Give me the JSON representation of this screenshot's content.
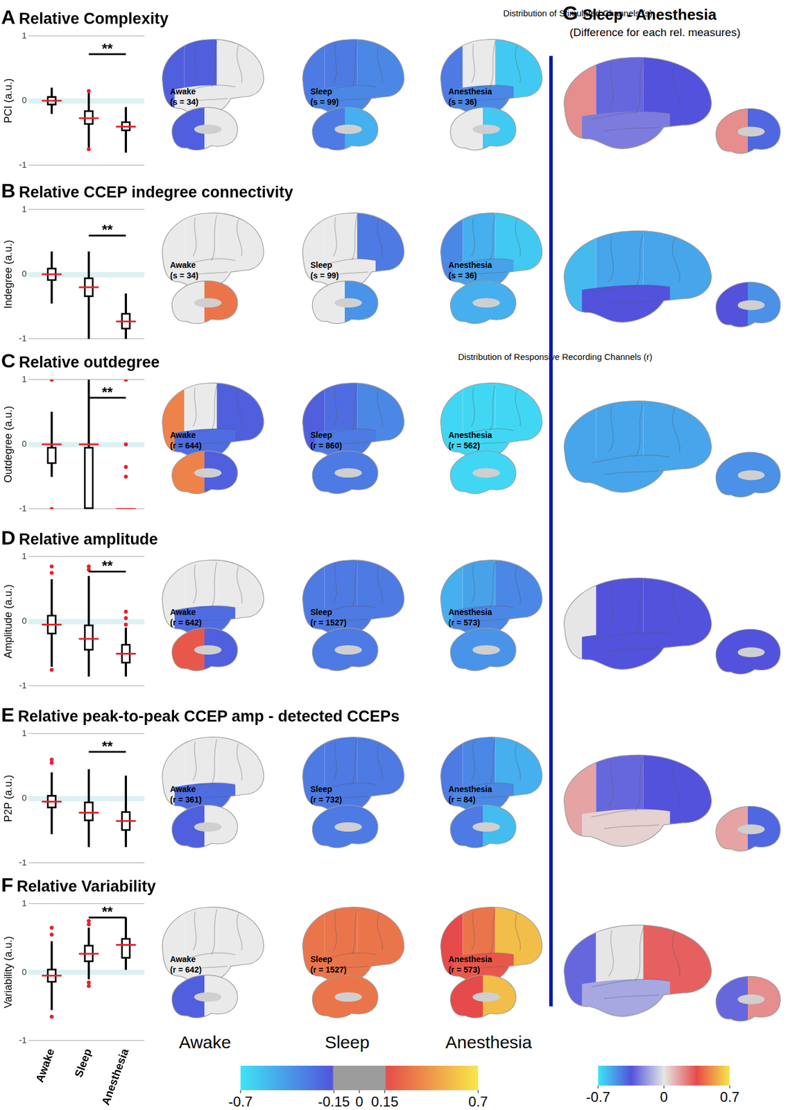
{
  "chart_data": [
    {
      "type": "box",
      "panel": "A",
      "title": "Relative Complexity",
      "ylabel": "PCI (a.u.)",
      "categories": [
        "Awake",
        "Sleep",
        "Anesthesia"
      ],
      "boxes": [
        {
          "median": 0,
          "q1": -0.07,
          "q3": 0.07,
          "whisker_low": -0.2,
          "whisker_high": 0.2,
          "outliers": []
        },
        {
          "median": -0.27,
          "q1": -0.37,
          "q3": -0.15,
          "whisker_low": -0.72,
          "whisker_high": 0.12,
          "outliers": [
            0.15,
            -0.75
          ]
        },
        {
          "median": -0.4,
          "q1": -0.47,
          "q3": -0.32,
          "whisker_low": -0.8,
          "whisker_high": -0.1,
          "outliers": []
        }
      ],
      "significance": {
        "from": "Sleep",
        "to": "Anesthesia",
        "y": 0.72,
        "label": "**"
      },
      "color": "#000000",
      "ylim": [
        -1,
        1
      ],
      "yticks": [
        -1,
        0,
        1
      ],
      "grid": true,
      "tick_labels": "y"
    },
    {
      "type": "box",
      "panel": "B",
      "title": "Relative CCEP indegree connectivity",
      "ylabel": "Indegree (a.u.)",
      "categories": [
        "Awake",
        "Sleep",
        "Anesthesia"
      ],
      "boxes": [
        {
          "median": 0,
          "q1": -0.1,
          "q3": 0.1,
          "whisker_low": -0.45,
          "whisker_high": 0.35,
          "outliers": []
        },
        {
          "median": -0.2,
          "q1": -0.35,
          "q3": -0.05,
          "whisker_low": -1,
          "whisker_high": 0.35,
          "outliers": []
        },
        {
          "median": -0.73,
          "q1": -0.85,
          "q3": -0.6,
          "whisker_low": -1,
          "whisker_high": -0.3,
          "outliers": []
        }
      ],
      "significance": {
        "from": "Sleep",
        "to": "Anesthesia",
        "y": 0.6,
        "label": "**"
      },
      "color": "#000000",
      "ylim": [
        -1,
        1
      ],
      "yticks": [
        -1,
        0,
        1
      ],
      "grid": true,
      "tick_labels": "y"
    },
    {
      "type": "box",
      "panel": "C",
      "title": "Relative outdegree",
      "ylabel": "Outdegree (a.u.)",
      "categories": [
        "Awake",
        "Sleep",
        "Anesthesia"
      ],
      "boxes": [
        {
          "median": 0,
          "q1": -0.3,
          "q3": 0,
          "whisker_low": -0.5,
          "whisker_high": 0.5,
          "outliers": [
            1,
            -1
          ]
        },
        {
          "median": 0,
          "q1": -1,
          "q3": 0,
          "whisker_low": -1,
          "whisker_high": 1,
          "outliers": []
        },
        {
          "median": -1,
          "q1": -1,
          "q3": -1,
          "whisker_low": -1,
          "whisker_high": -1,
          "outliers": [
            1,
            0,
            -0.35,
            -0.5
          ]
        }
      ],
      "significance": {
        "from": "Sleep",
        "to": "Anesthesia",
        "y": 0.72,
        "label": "**"
      },
      "color": "#000000",
      "ylim": [
        -1,
        1
      ],
      "yticks": [
        -1,
        0,
        1
      ],
      "grid": true,
      "tick_labels": "y"
    },
    {
      "type": "box",
      "panel": "D",
      "title": "Relative amplitude",
      "ylabel": "Amplitude (a.u.)",
      "categories": [
        "Awake",
        "Sleep",
        "Anesthesia"
      ],
      "boxes": [
        {
          "median": -0.05,
          "q1": -0.2,
          "q3": 0.1,
          "whisker_low": -0.7,
          "whisker_high": 0.65,
          "outliers": [
            0.85,
            0.75,
            -0.75
          ]
        },
        {
          "median": -0.27,
          "q1": -0.45,
          "q3": -0.05,
          "whisker_low": -0.85,
          "whisker_high": 0.7,
          "outliers": [
            0.85,
            0.8
          ]
        },
        {
          "median": -0.5,
          "q1": -0.65,
          "q3": -0.35,
          "whisker_low": -0.85,
          "whisker_high": -0.1,
          "outliers": [
            0.15,
            0.05,
            -0.05
          ]
        }
      ],
      "significance": {
        "from": "Sleep",
        "to": "Anesthesia",
        "y": 0.77,
        "label": "**"
      },
      "color": "#000000",
      "ylim": [
        -1,
        1
      ],
      "yticks": [
        -1,
        0,
        1
      ],
      "grid": true,
      "tick_labels": "y"
    },
    {
      "type": "box",
      "panel": "E",
      "title": "Relative peak-to-peak CCEP amp - detected CCEPs",
      "ylabel": "P2P (a.u.)",
      "categories": [
        "Awake",
        "Sleep",
        "Anesthesia"
      ],
      "boxes": [
        {
          "median": -0.05,
          "q1": -0.15,
          "q3": 0.05,
          "whisker_low": -0.55,
          "whisker_high": 0.4,
          "outliers": [
            0.6,
            0.55
          ]
        },
        {
          "median": -0.22,
          "q1": -0.35,
          "q3": -0.05,
          "whisker_low": -0.75,
          "whisker_high": 0.45,
          "outliers": []
        },
        {
          "median": -0.35,
          "q1": -0.5,
          "q3": -0.2,
          "whisker_low": -0.75,
          "whisker_high": 0.35,
          "outliers": []
        }
      ],
      "significance": {
        "from": "Sleep",
        "to": "Anesthesia",
        "y": 0.72,
        "label": "**"
      },
      "color": "#000000",
      "ylim": [
        -1,
        1
      ],
      "yticks": [
        -1,
        0,
        1
      ],
      "grid": true,
      "tick_labels": "y"
    },
    {
      "type": "box",
      "panel": "F",
      "title": "Relative Variability",
      "ylabel": "Variability (a.u.)",
      "categories": [
        "Awake",
        "Sleep",
        "Anesthesia"
      ],
      "boxes": [
        {
          "median": -0.05,
          "q1": -0.15,
          "q3": 0.05,
          "whisker_low": -0.55,
          "whisker_high": 0.45,
          "outliers": [
            0.65,
            0.55,
            -0.65
          ]
        },
        {
          "median": 0.27,
          "q1": 0.15,
          "q3": 0.4,
          "whisker_low": -0.1,
          "whisker_high": 0.65,
          "outliers": [
            0.75,
            0.7,
            -0.15,
            -0.2
          ]
        },
        {
          "median": 0.4,
          "q1": 0.2,
          "q3": 0.5,
          "whisker_low": 0,
          "whisker_high": 0.8,
          "outliers": []
        }
      ],
      "significance": {
        "from": "Sleep",
        "to": "Anesthesia",
        "y": 0.8,
        "label": "**"
      },
      "color": "#000000",
      "ylim": [
        -1,
        1
      ],
      "yticks": [
        -1,
        0,
        1
      ],
      "grid": true
    }
  ],
  "brain_maps": {
    "column_labels": [
      "Awake",
      "Sleep",
      "Anesthesia"
    ],
    "colorbar": {
      "range": [
        -0.7,
        0.7
      ],
      "ticks": [
        -0.7,
        -0.15,
        0,
        0.15,
        0.7
      ]
    },
    "rows": [
      {
        "panel": "A",
        "header": "Distribution of Stimulated Channels (s)",
        "maps": [
          {
            "label": "Awake",
            "count": "(s = 34)",
            "lateral": {
              "frontal": 0,
              "parietal": -0.2,
              "temporal": 0,
              "occipital": -0.2
            },
            "medial": {
              "anterior": 0,
              "posterior": -0.2
            }
          },
          {
            "label": "Sleep",
            "count": "(s = 99)",
            "lateral": {
              "frontal": -0.35,
              "parietal": -0.3,
              "temporal": -0.35,
              "occipital": -0.3
            },
            "medial": {
              "anterior": -0.5,
              "posterior": -0.3
            }
          },
          {
            "label": "Anesthesia",
            "count": "(s = 36)",
            "lateral": {
              "frontal": -0.6,
              "parietal": 0,
              "temporal": -0.35,
              "occipital": -0.3
            },
            "medial": {
              "anterior": -0.6,
              "posterior": -0.1
            }
          }
        ]
      },
      {
        "panel": "B",
        "maps": [
          {
            "label": "Awake",
            "count": "(s = 34)",
            "lateral": {
              "frontal": 0,
              "parietal": 0,
              "temporal": 0,
              "occipital": 0
            },
            "medial": {
              "anterior": 0.3,
              "posterior": 0
            }
          },
          {
            "label": "Sleep",
            "count": "(s = 99)",
            "lateral": {
              "frontal": -0.3,
              "parietal": 0,
              "temporal": 0,
              "occipital": 0
            },
            "medial": {
              "anterior": -0.4,
              "posterior": 0
            }
          },
          {
            "label": "Anesthesia",
            "count": "(s = 36)",
            "lateral": {
              "frontal": -0.6,
              "parietal": -0.5,
              "temporal": -0.45,
              "occipital": -0.35
            },
            "medial": {
              "anterior": -0.5,
              "posterior": -0.5
            }
          }
        ]
      },
      {
        "panel": "C",
        "header": "Distribution of Responsive Recording Channels (r)",
        "maps": [
          {
            "label": "Awake",
            "count": "(r = 644)",
            "lateral": {
              "frontal": -0.2,
              "parietal": 0,
              "temporal": -0.25,
              "occipital": 0.35
            },
            "medial": {
              "anterior": -0.2,
              "posterior": 0.35
            }
          },
          {
            "label": "Sleep",
            "count": "(r = 860)",
            "lateral": {
              "frontal": -0.35,
              "parietal": -0.25,
              "temporal": -0.3,
              "occipital": -0.2
            },
            "medial": {
              "anterior": -0.3,
              "posterior": -0.3
            }
          },
          {
            "label": "Anesthesia",
            "count": "(r = 562)",
            "lateral": {
              "frontal": -0.65,
              "parietal": -0.65,
              "temporal": -0.65,
              "occipital": -0.65
            },
            "medial": {
              "anterior": -0.65,
              "posterior": -0.65
            }
          }
        ]
      },
      {
        "panel": "D",
        "maps": [
          {
            "label": "Awake",
            "count": "(r = 642)",
            "lateral": {
              "frontal": 0,
              "parietal": 0,
              "temporal": -0.25,
              "occipital": 0
            },
            "medial": {
              "anterior": -0.2,
              "posterior": 0.2
            }
          },
          {
            "label": "Sleep",
            "count": "(r = 1527)",
            "lateral": {
              "frontal": -0.3,
              "parietal": -0.3,
              "temporal": -0.3,
              "occipital": -0.3
            },
            "medial": {
              "anterior": -0.3,
              "posterior": -0.3
            }
          },
          {
            "label": "Anesthesia",
            "count": "(r = 573)",
            "lateral": {
              "frontal": -0.35,
              "parietal": -0.45,
              "temporal": -0.35,
              "occipital": -0.5
            },
            "medial": {
              "anterior": -0.4,
              "posterior": -0.4
            }
          }
        ]
      },
      {
        "panel": "E",
        "maps": [
          {
            "label": "Awake",
            "count": "(r = 361)",
            "lateral": {
              "frontal": 0,
              "parietal": 0,
              "temporal": -0.25,
              "occipital": 0
            },
            "medial": {
              "anterior": 0,
              "posterior": -0.2
            }
          },
          {
            "label": "Sleep",
            "count": "(r = 732)",
            "lateral": {
              "frontal": -0.3,
              "parietal": -0.3,
              "temporal": -0.3,
              "occipital": -0.3
            },
            "medial": {
              "anterior": -0.3,
              "posterior": -0.3
            }
          },
          {
            "label": "Anesthesia",
            "count": "(r = 84)",
            "lateral": {
              "frontal": -0.5,
              "parietal": -0.35,
              "temporal": -0.35,
              "occipital": -0.3
            },
            "medial": {
              "anterior": -0.55,
              "posterior": -0.3
            }
          }
        ]
      },
      {
        "panel": "F",
        "maps": [
          {
            "label": "Awake",
            "count": "(r = 642)",
            "lateral": {
              "frontal": 0,
              "parietal": 0,
              "temporal": 0,
              "occipital": 0
            },
            "medial": {
              "anterior": 0,
              "posterior": -0.2
            }
          },
          {
            "label": "Sleep",
            "count": "(r = 1527)",
            "lateral": {
              "frontal": 0.3,
              "parietal": 0.3,
              "temporal": 0.3,
              "occipital": 0.3
            },
            "medial": {
              "anterior": 0.3,
              "posterior": 0.3
            }
          },
          {
            "label": "Anesthesia",
            "count": "(r = 573)",
            "lateral": {
              "frontal": 0.55,
              "parietal": 0.3,
              "temporal": 0.2,
              "occipital": 0.15
            },
            "medial": {
              "anterior": 0.55,
              "posterior": 0.15
            }
          }
        ]
      }
    ]
  },
  "difference_maps": {
    "panel": "G",
    "title": "Sleep - Anesthesia",
    "subtitle": "(Difference for each rel. measures)",
    "colorbar": {
      "range": [
        -0.7,
        0.7
      ],
      "ticks": [
        -0.7,
        0,
        0.7
      ]
    },
    "maps": [
      {
        "lateral": {
          "frontal": -0.35,
          "parietal": -0.3,
          "temporal": -0.25,
          "occipital": 0.2
        },
        "medial": {
          "anterior": -0.4,
          "posterior": 0.2
        }
      },
      {
        "lateral": {
          "frontal": -0.55,
          "parietal": -0.55,
          "temporal": -0.35,
          "occipital": -0.6
        },
        "medial": {
          "anterior": -0.5,
          "posterior": -0.35
        }
      },
      {
        "lateral": {
          "frontal": -0.55,
          "parietal": -0.55,
          "temporal": -0.55,
          "occipital": -0.55
        },
        "medial": {
          "anterior": -0.5,
          "posterior": -0.5
        }
      },
      {
        "lateral": {
          "frontal": -0.35,
          "parietal": -0.35,
          "temporal": -0.35,
          "occipital": 0
        },
        "medial": {
          "anterior": -0.35,
          "posterior": -0.35
        }
      },
      {
        "lateral": {
          "frontal": -0.35,
          "parietal": -0.3,
          "temporal": 0.05,
          "occipital": 0.15
        },
        "medial": {
          "anterior": -0.4,
          "posterior": 0.15
        }
      },
      {
        "lateral": {
          "frontal": 0.3,
          "parietal": 0,
          "temporal": -0.15,
          "occipital": -0.3
        },
        "medial": {
          "anterior": 0.2,
          "posterior": -0.3
        }
      }
    ]
  }
}
